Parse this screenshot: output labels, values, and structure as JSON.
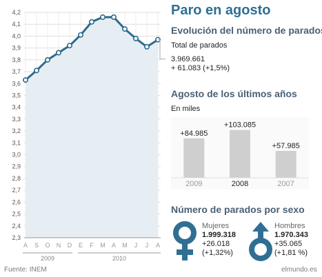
{
  "title": "Paro en agosto",
  "evolution": {
    "heading": "Evolución del número de parados",
    "total_label": "Total de parados",
    "total_value": "3.969.661",
    "total_change": "+ 61.083 (+1,5%)"
  },
  "recent_years": {
    "heading": "Agosto de los últimos años",
    "unit": "En miles"
  },
  "by_sex": {
    "heading": "Número de parados por sexo",
    "women": {
      "label": "Mujeres",
      "value": "1.999.318",
      "change": "+26.018",
      "pct": "(+1,32%)",
      "icon": "female-symbol-icon"
    },
    "men": {
      "label": "Hombres",
      "value": "1.970.343",
      "change": "+35.065",
      "pct": "(+1,81 %)",
      "icon": "male-symbol-icon"
    }
  },
  "footer": {
    "source": "Fuente: INEM",
    "credit": "elmundo.es"
  },
  "colors": {
    "accent": "#2f6f93",
    "line": "#2c6b8f",
    "area": "#e6eef3",
    "bar": "#cfcfcf",
    "grid": "#dedede"
  },
  "chart_data": [
    {
      "type": "area",
      "categories": [
        "A",
        "S",
        "O",
        "N",
        "D",
        "E",
        "F",
        "M",
        "A",
        "M",
        "J",
        "J",
        "A"
      ],
      "x_groups": [
        {
          "label": "2009",
          "from": 0,
          "to": 4
        },
        {
          "label": "2010",
          "from": 5,
          "to": 12
        }
      ],
      "values": [
        3.63,
        3.71,
        3.8,
        3.86,
        3.92,
        4.01,
        4.12,
        4.16,
        4.16,
        4.06,
        3.98,
        3.91,
        3.97
      ],
      "ylim": [
        2.3,
        4.2
      ],
      "yticks": [
        "2,3",
        "2,4",
        "2,5",
        "2,6",
        "2,7",
        "2,8",
        "2,9",
        "3,0",
        "3,1",
        "3,2",
        "3,3",
        "3,4",
        "3,5",
        "3,6",
        "3,7",
        "3,8",
        "3,9",
        "4,0",
        "4,1",
        "4,2"
      ],
      "grid": true
    },
    {
      "type": "bar",
      "categories": [
        "2009",
        "2008",
        "2007"
      ],
      "values": [
        84.985,
        103.085,
        57.985
      ],
      "labels": [
        "+84.985",
        "+103.085",
        "+57.985"
      ],
      "ylim": [
        0,
        110
      ]
    }
  ]
}
